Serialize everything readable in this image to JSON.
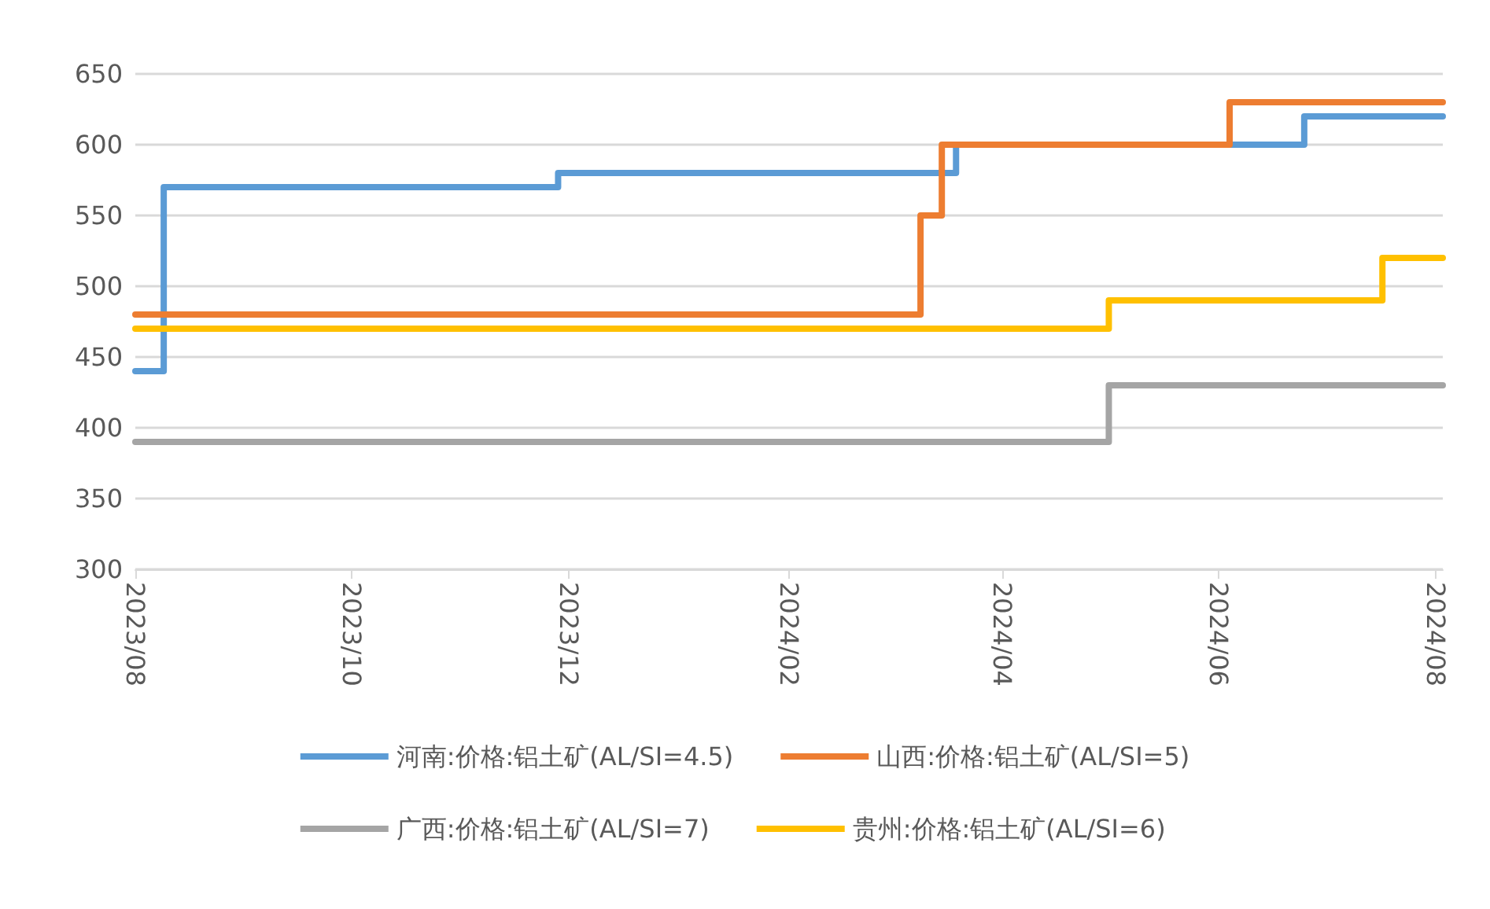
{
  "chart_data": {
    "type": "step",
    "xlim": [
      "2023-08-01",
      "2024-08-03"
    ],
    "ylim": [
      300,
      650
    ],
    "yticks": [
      300,
      350,
      400,
      450,
      500,
      550,
      600,
      650
    ],
    "xticks": [
      {
        "value": "2023-08-01",
        "label": "2023/08"
      },
      {
        "value": "2023-10-01",
        "label": "2023/10"
      },
      {
        "value": "2023-12-01",
        "label": "2023/12"
      },
      {
        "value": "2024-02-01",
        "label": "2024/02"
      },
      {
        "value": "2024-04-01",
        "label": "2024/04"
      },
      {
        "value": "2024-06-01",
        "label": "2024/06"
      },
      {
        "value": "2024-08-01",
        "label": "2024/08"
      }
    ],
    "grid": "y",
    "legend": "bottom",
    "marker": "none",
    "line_style": "solid",
    "series": [
      {
        "name": "河南:价格:铝土矿(AL/SI=4.5)",
        "color": "#5b9bd5",
        "x": [
          "2023-08-01",
          "2023-08-09",
          "2023-11-28",
          "2024-03-19",
          "2024-06-25",
          "2024-08-03"
        ],
        "values": [
          440,
          570,
          580,
          600,
          620,
          620
        ]
      },
      {
        "name": "山西:价格:铝土矿(AL/SI=5)",
        "color": "#ed7d31",
        "x": [
          "2023-08-01",
          "2024-03-09",
          "2024-03-15",
          "2024-06-04",
          "2024-08-03"
        ],
        "values": [
          480,
          550,
          600,
          630,
          630
        ]
      },
      {
        "name": "广西:价格:铝土矿(AL/SI=7)",
        "color": "#a5a5a5",
        "x": [
          "2023-08-01",
          "2024-05-01",
          "2024-08-03"
        ],
        "values": [
          390,
          430,
          430
        ]
      },
      {
        "name": "贵州:价格:铝土矿(AL/SI=6)",
        "color": "#ffc000",
        "x": [
          "2023-08-01",
          "2024-05-01",
          "2024-07-17",
          "2024-08-03"
        ],
        "values": [
          470,
          490,
          520,
          520
        ]
      }
    ]
  }
}
